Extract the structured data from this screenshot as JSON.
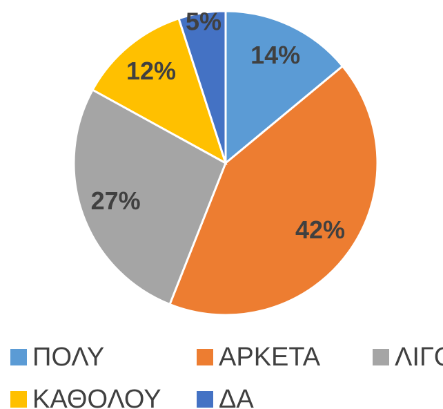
{
  "chart_data": {
    "type": "pie",
    "categories": [
      "ΠΟΛΥ",
      "ΑΡΚΕΤΑ",
      "ΛΙΓΟ",
      "ΚΑΘΟΛΟΥ",
      "ΔΑ"
    ],
    "values": [
      14,
      42,
      27,
      12,
      5
    ],
    "value_labels": [
      "14%",
      "42%",
      "27%",
      "12%",
      "5%"
    ],
    "colors": [
      "#5b9bd5",
      "#ed7d31",
      "#a5a5a5",
      "#ffc000",
      "#4472c4"
    ],
    "legend": "bottom"
  }
}
